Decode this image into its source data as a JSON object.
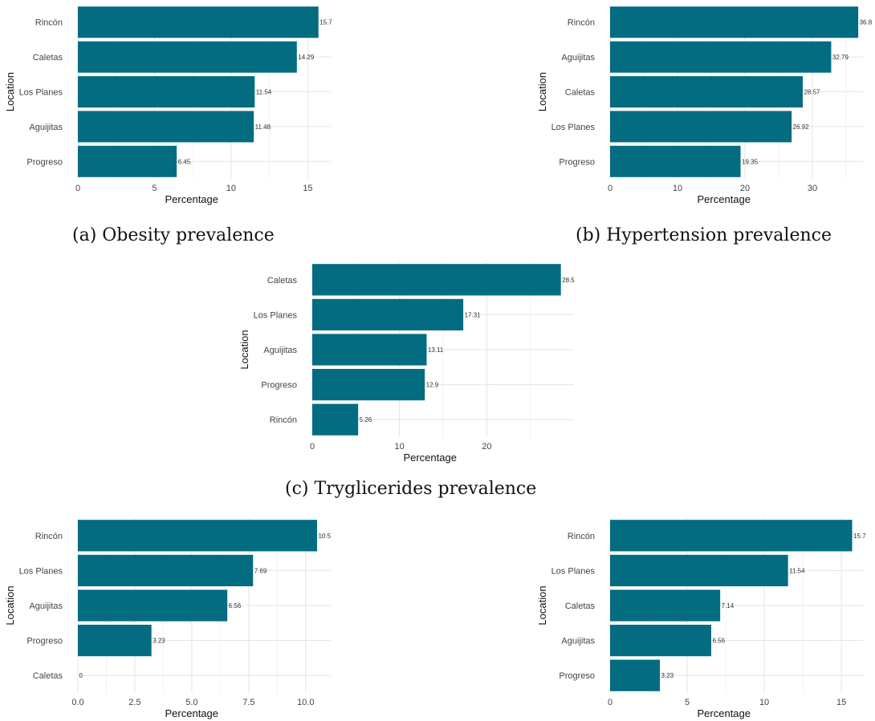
{
  "colors": {
    "bar": "#036c80",
    "grid_major": "#e4e4e4",
    "grid_minor": "#f2f2f2"
  },
  "chart_data": [
    {
      "id": "a",
      "type": "bar",
      "orientation": "horizontal",
      "caption": "(a) Obesity prevalence",
      "xlabel": "Percentage",
      "ylabel": "Location",
      "categories": [
        "Rincón",
        "Caletas",
        "Los Planes",
        "Aguijitas",
        "Progreso"
      ],
      "values": [
        15.7,
        14.29,
        11.54,
        11.48,
        6.45
      ],
      "value_labels": [
        "15.7",
        "14.29",
        "11.54",
        "11.48",
        "6.45"
      ],
      "xticks": [
        0,
        5,
        10,
        15
      ],
      "xtick_labels": [
        "0",
        "5",
        "10",
        "15"
      ],
      "xlim": [
        0,
        16.5
      ],
      "grid": true
    },
    {
      "id": "b",
      "type": "bar",
      "orientation": "horizontal",
      "caption": "(b) Hypertension prevalence",
      "xlabel": "Percentage",
      "ylabel": "Location",
      "categories": [
        "Rincón",
        "Aguijitas",
        "Caletas",
        "Los Planes",
        "Progreso"
      ],
      "values": [
        36.8,
        32.79,
        28.57,
        26.92,
        19.35
      ],
      "value_labels": [
        "36.8",
        "32.79",
        "28.57",
        "26.92",
        "19.35"
      ],
      "xticks": [
        0,
        10,
        20,
        30
      ],
      "xtick_labels": [
        "0",
        "10",
        "20",
        "30"
      ],
      "xlim": [
        0,
        37.5
      ],
      "grid": true
    },
    {
      "id": "c",
      "type": "bar",
      "orientation": "horizontal",
      "caption": "(c) Tryglicerides prevalence",
      "xlabel": "Percentage",
      "ylabel": "Location",
      "categories": [
        "Caletas",
        "Los Planes",
        "Aguijitas",
        "Progreso",
        "Rincón"
      ],
      "values": [
        28.5,
        17.31,
        13.11,
        12.9,
        5.26
      ],
      "value_labels": [
        "28.5",
        "17.31",
        "13.11",
        "12.9",
        "5.26"
      ],
      "xticks": [
        0,
        10,
        20
      ],
      "xtick_labels": [
        "0",
        "10",
        "20"
      ],
      "xlim": [
        0,
        30
      ],
      "grid": true
    },
    {
      "id": "d",
      "type": "bar",
      "orientation": "horizontal",
      "caption": "",
      "xlabel": "Percentage",
      "ylabel": "Location",
      "categories": [
        "Rincón",
        "Los Planes",
        "Aguijitas",
        "Progreso",
        "Caletas"
      ],
      "values": [
        10.5,
        7.69,
        6.56,
        3.23,
        0
      ],
      "value_labels": [
        "10.5",
        "7.69",
        "6.56",
        "3.23",
        "0"
      ],
      "xticks": [
        0,
        2.5,
        5,
        7.5,
        10
      ],
      "xtick_labels": [
        "0.0",
        "2.5",
        "5.0",
        "7.5",
        "10.0"
      ],
      "xlim": [
        0,
        11.1
      ],
      "grid": true
    },
    {
      "id": "e",
      "type": "bar",
      "orientation": "horizontal",
      "caption": "",
      "xlabel": "Percentage",
      "ylabel": "Location",
      "categories": [
        "Rincón",
        "Los Planes",
        "Caletas",
        "Aguijitas",
        "Progreso"
      ],
      "values": [
        15.7,
        11.54,
        7.14,
        6.56,
        3.23
      ],
      "value_labels": [
        "15.7",
        "11.54",
        "7.14",
        "6.56",
        "3.23"
      ],
      "xticks": [
        0,
        5,
        10,
        15
      ],
      "xtick_labels": [
        "0",
        "5",
        "10",
        "15"
      ],
      "xlim": [
        0,
        16.4
      ],
      "grid": true
    }
  ]
}
